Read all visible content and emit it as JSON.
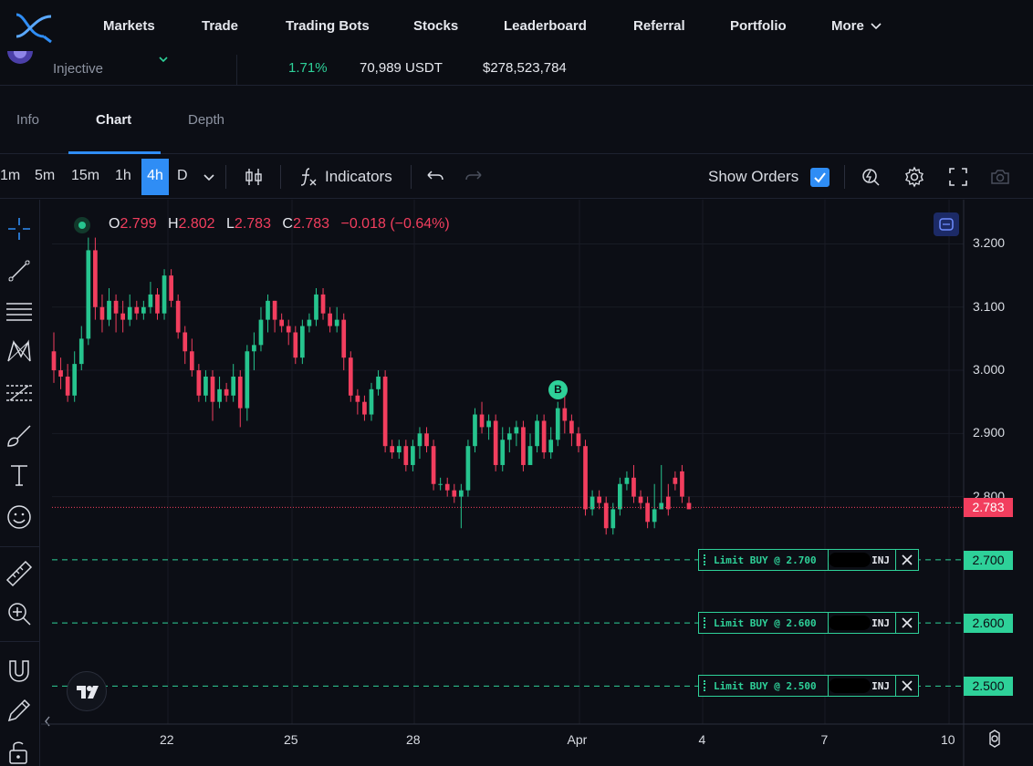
{
  "nav": {
    "items": [
      "Markets",
      "Trade",
      "Trading Bots",
      "Stocks",
      "Leaderboard",
      "Referral",
      "Portfolio",
      "More"
    ]
  },
  "ticker": {
    "coin_name": "Injective",
    "change": "1.71%",
    "volume": "70,989 USDT",
    "turnover": "$278,523,784"
  },
  "tabs": [
    "Info",
    "Chart",
    "Depth"
  ],
  "toolbar": {
    "timeframes": [
      "1m",
      "5m",
      "15m",
      "1h",
      "4h",
      "D"
    ],
    "active_timeframe": "4h",
    "indicators_label": "Indicators",
    "show_orders_label": "Show Orders",
    "show_orders_checked": true
  },
  "legend": {
    "o_label": "O",
    "o_value": "2.799",
    "h_label": "H",
    "h_value": "2.802",
    "l_label": "L",
    "l_value": "2.783",
    "c_label": "C",
    "c_value": "2.783",
    "change": "−0.018 (−0.64%)"
  },
  "chart_data": {
    "type": "candlestick",
    "x_ticks": [
      "22",
      "25",
      "28",
      "Apr",
      "4",
      "7",
      "10"
    ],
    "y_ticks": [
      "3.200",
      "3.100",
      "3.000",
      "2.900",
      "2.800"
    ],
    "ylim": [
      2.44,
      3.27
    ],
    "last_price": "2.783",
    "marker_label": "B",
    "candles": [
      [
        3.03,
        3.0,
        3.06,
        2.98
      ],
      [
        3.0,
        2.99,
        3.02,
        2.97
      ],
      [
        2.99,
        2.96,
        3.01,
        2.95
      ],
      [
        2.96,
        3.01,
        3.03,
        2.95
      ],
      [
        3.01,
        3.05,
        3.07,
        3.0
      ],
      [
        3.05,
        3.19,
        3.21,
        3.04
      ],
      [
        3.19,
        3.1,
        3.21,
        3.08
      ],
      [
        3.1,
        3.08,
        3.12,
        3.06
      ],
      [
        3.08,
        3.11,
        3.13,
        3.07
      ],
      [
        3.11,
        3.09,
        3.12,
        3.06
      ],
      [
        3.09,
        3.08,
        3.11,
        3.06
      ],
      [
        3.08,
        3.1,
        3.12,
        3.07
      ],
      [
        3.1,
        3.09,
        3.11,
        3.08
      ],
      [
        3.09,
        3.1,
        3.11,
        3.08
      ],
      [
        3.1,
        3.12,
        3.14,
        3.09
      ],
      [
        3.12,
        3.09,
        3.13,
        3.08
      ],
      [
        3.09,
        3.15,
        3.16,
        3.08
      ],
      [
        3.15,
        3.11,
        3.16,
        3.1
      ],
      [
        3.11,
        3.06,
        3.12,
        3.05
      ],
      [
        3.06,
        3.03,
        3.07,
        3.01
      ],
      [
        3.03,
        3.0,
        3.05,
        2.99
      ],
      [
        3.0,
        2.96,
        3.01,
        2.95
      ],
      [
        2.96,
        2.99,
        3.0,
        2.95
      ],
      [
        2.99,
        2.95,
        3.0,
        2.92
      ],
      [
        2.95,
        2.97,
        2.99,
        2.94
      ],
      [
        2.97,
        2.96,
        2.98,
        2.95
      ],
      [
        2.96,
        2.99,
        3.01,
        2.95
      ],
      [
        2.99,
        2.94,
        3.0,
        2.91
      ],
      [
        2.94,
        3.03,
        3.04,
        2.92
      ],
      [
        3.03,
        3.04,
        3.06,
        3.0
      ],
      [
        3.04,
        3.08,
        3.1,
        3.03
      ],
      [
        3.08,
        3.11,
        3.12,
        3.06
      ],
      [
        3.11,
        3.08,
        3.11,
        3.06
      ],
      [
        3.08,
        3.07,
        3.09,
        3.06
      ],
      [
        3.07,
        3.06,
        3.08,
        3.04
      ],
      [
        3.06,
        3.02,
        3.07,
        3.01
      ],
      [
        3.02,
        3.07,
        3.08,
        3.01
      ],
      [
        3.07,
        3.08,
        3.09,
        3.06
      ],
      [
        3.08,
        3.12,
        3.13,
        3.07
      ],
      [
        3.12,
        3.09,
        3.13,
        3.08
      ],
      [
        3.09,
        3.07,
        3.1,
        3.06
      ],
      [
        3.07,
        3.08,
        3.1,
        3.06
      ],
      [
        3.08,
        3.02,
        3.09,
        3.0
      ],
      [
        3.02,
        2.96,
        3.03,
        2.95
      ],
      [
        2.96,
        2.95,
        2.97,
        2.93
      ],
      [
        2.95,
        2.93,
        2.96,
        2.92
      ],
      [
        2.93,
        2.97,
        2.98,
        2.92
      ],
      [
        2.97,
        2.99,
        3.0,
        2.96
      ],
      [
        2.99,
        2.88,
        3.0,
        2.87
      ],
      [
        2.88,
        2.87,
        2.89,
        2.86
      ],
      [
        2.87,
        2.88,
        2.89,
        2.86
      ],
      [
        2.88,
        2.85,
        2.89,
        2.84
      ],
      [
        2.85,
        2.88,
        2.89,
        2.84
      ],
      [
        2.88,
        2.9,
        2.91,
        2.86
      ],
      [
        2.9,
        2.88,
        2.91,
        2.87
      ],
      [
        2.88,
        2.82,
        2.89,
        2.81
      ],
      [
        2.82,
        2.82,
        2.83,
        2.81
      ],
      [
        2.82,
        2.81,
        2.83,
        2.8
      ],
      [
        2.81,
        2.8,
        2.82,
        2.79
      ],
      [
        2.8,
        2.81,
        2.82,
        2.75
      ],
      [
        2.81,
        2.88,
        2.89,
        2.8
      ],
      [
        2.88,
        2.93,
        2.94,
        2.87
      ],
      [
        2.93,
        2.91,
        2.95,
        2.9
      ],
      [
        2.91,
        2.92,
        2.93,
        2.89
      ],
      [
        2.92,
        2.85,
        2.93,
        2.84
      ],
      [
        2.85,
        2.89,
        2.91,
        2.84
      ],
      [
        2.89,
        2.9,
        2.91,
        2.87
      ],
      [
        2.9,
        2.91,
        2.92,
        2.88
      ],
      [
        2.91,
        2.85,
        2.92,
        2.84
      ],
      [
        2.85,
        2.88,
        2.9,
        2.85
      ],
      [
        2.88,
        2.92,
        2.93,
        2.87
      ],
      [
        2.92,
        2.87,
        2.93,
        2.86
      ],
      [
        2.87,
        2.89,
        2.91,
        2.86
      ],
      [
        2.89,
        2.94,
        2.95,
        2.88
      ],
      [
        2.94,
        2.92,
        2.97,
        2.9
      ],
      [
        2.92,
        2.9,
        2.93,
        2.88
      ],
      [
        2.9,
        2.88,
        2.91,
        2.87
      ],
      [
        2.88,
        2.78,
        2.89,
        2.77
      ],
      [
        2.78,
        2.8,
        2.81,
        2.77
      ],
      [
        2.8,
        2.79,
        2.81,
        2.78
      ],
      [
        2.79,
        2.75,
        2.8,
        2.74
      ],
      [
        2.75,
        2.78,
        2.79,
        2.74
      ],
      [
        2.78,
        2.82,
        2.83,
        2.77
      ],
      [
        2.82,
        2.83,
        2.84,
        2.81
      ],
      [
        2.83,
        2.8,
        2.85,
        2.79
      ],
      [
        2.8,
        2.79,
        2.81,
        2.78
      ],
      [
        2.79,
        2.76,
        2.8,
        2.75
      ],
      [
        2.76,
        2.78,
        2.82,
        2.75
      ],
      [
        2.78,
        2.79,
        2.85,
        2.78
      ],
      [
        2.8,
        2.78,
        2.82,
        2.77
      ],
      [
        2.83,
        2.82,
        2.84,
        2.81
      ],
      [
        2.84,
        2.8,
        2.85,
        2.79
      ],
      [
        2.79,
        2.78,
        2.8,
        2.78
      ]
    ],
    "orders": [
      {
        "label": "Limit BUY @ 2.700",
        "qty": "INJ",
        "price": 2.7,
        "tag": "2.700"
      },
      {
        "label": "Limit BUY @ 2.600",
        "qty": "INJ",
        "price": 2.6,
        "tag": "2.600"
      },
      {
        "label": "Limit BUY @ 2.500",
        "qty": "INJ",
        "price": 2.5,
        "tag": "2.500"
      }
    ]
  },
  "colors": {
    "up": "#26c48e",
    "down": "#f23e5e",
    "accent": "#2f8df5",
    "order": "#2ed199"
  }
}
